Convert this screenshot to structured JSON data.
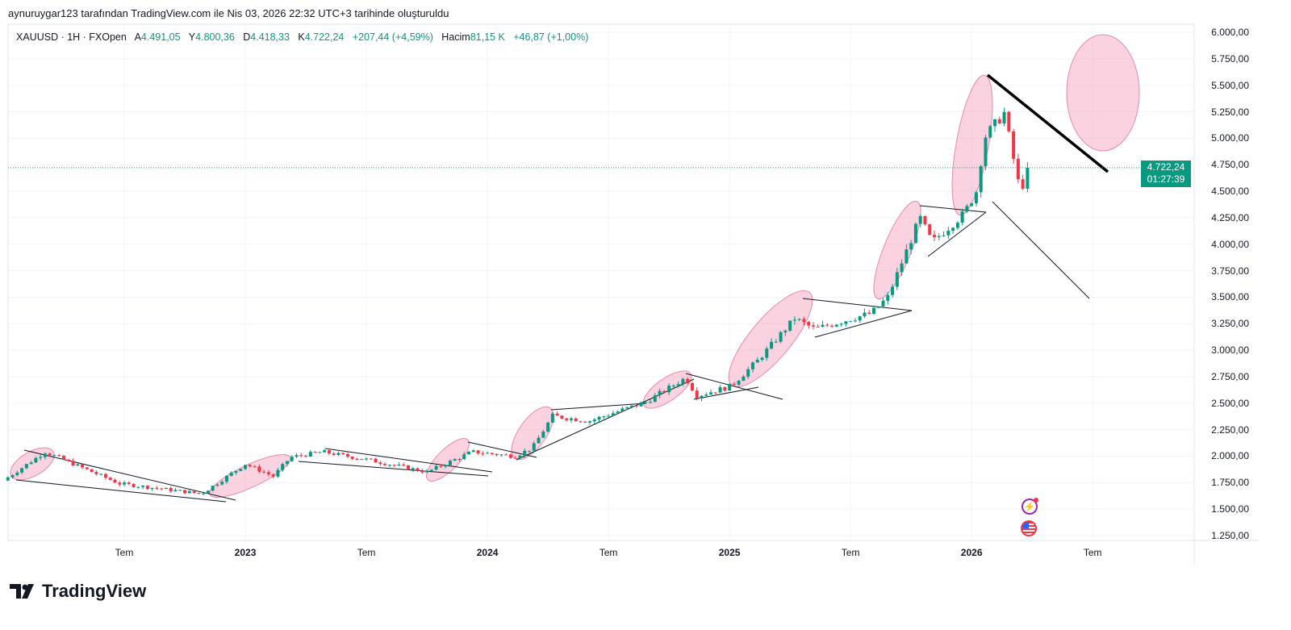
{
  "header": {
    "credit": "aynuruygar123 tarafından TradingView.com ile Nis 03, 2026 22:32 UTC+3 tarihinde oluşturuldu"
  },
  "legend": {
    "symbol": "XAUUSD · 1H · FXOpen",
    "open_label": "A",
    "open": "4.491,05",
    "high_label": "Y",
    "high": "4.800,36",
    "low_label": "D",
    "low": "4.418,33",
    "close_label": "K",
    "close": "4.722,24",
    "change": "+207,44 (+4,59%)",
    "volume_label": "Hacim",
    "volume": "81,15 K",
    "volume_change": "+46,87 (+1,00%)"
  },
  "price_label": {
    "price": "4.722,24",
    "countdown": "01:27:39"
  },
  "colors": {
    "up": "#089981",
    "down": "#f23645",
    "highlight": "#f4a6bd"
  },
  "icons": [
    "lightning-icon",
    "us-flag-icon"
  ],
  "brand": {
    "name": "TradingView"
  },
  "chart_data": {
    "type": "candlestick",
    "y_ticks": [
      "6.000,00",
      "5.750,00",
      "5.500,00",
      "5.250,00",
      "5.000,00",
      "4.750,00",
      "4.500,00",
      "4.250,00",
      "4.000,00",
      "3.750,00",
      "3.500,00",
      "3.250,00",
      "3.000,00",
      "2.750,00",
      "2.500,00",
      "2.250,00",
      "2.000,00",
      "1.750,00",
      "1.500,00",
      "1.250,00"
    ],
    "y_values": [
      6000,
      5750,
      5500,
      5250,
      5000,
      4750,
      4500,
      4250,
      4000,
      3750,
      3500,
      3250,
      3000,
      2750,
      2500,
      2250,
      2000,
      1750,
      1500,
      1250
    ],
    "ylim": [
      1250,
      6000
    ],
    "x_ticks": [
      {
        "label": "Tem",
        "week": 26,
        "bold": false
      },
      {
        "label": "2023",
        "week": 52,
        "bold": true
      },
      {
        "label": "Tem",
        "week": 78,
        "bold": false
      },
      {
        "label": "2024",
        "week": 104,
        "bold": true
      },
      {
        "label": "Tem",
        "week": 130,
        "bold": false
      },
      {
        "label": "2025",
        "week": 156,
        "bold": true
      },
      {
        "label": "Tem",
        "week": 182,
        "bold": false
      },
      {
        "label": "2026",
        "week": 208,
        "bold": true
      },
      {
        "label": "Tem",
        "week": 234,
        "bold": false
      }
    ],
    "close_anchors_week_price": [
      [
        1,
        1800
      ],
      [
        9,
        2040
      ],
      [
        25,
        1740
      ],
      [
        42.6,
        1645
      ],
      [
        52,
        1925
      ],
      [
        58,
        1810
      ],
      [
        61.7,
        1990
      ],
      [
        68.6,
        2040
      ],
      [
        79,
        1960
      ],
      [
        91,
        1850
      ],
      [
        100.7,
        2040
      ],
      [
        110,
        2000
      ],
      [
        113.7,
        2080
      ],
      [
        118,
        2380
      ],
      [
        125.8,
        2330
      ],
      [
        138,
        2510
      ],
      [
        146.6,
        2740
      ],
      [
        149,
        2570
      ],
      [
        156.3,
        2660
      ],
      [
        162,
        2900
      ],
      [
        170,
        3300
      ],
      [
        174.3,
        3200
      ],
      [
        186.5,
        3350
      ],
      [
        190,
        3500
      ],
      [
        196.9,
        4250
      ],
      [
        199.5,
        4020
      ],
      [
        206.4,
        4290
      ],
      [
        209,
        4500
      ],
      [
        210.8,
        5010
      ],
      [
        215,
        5240
      ],
      [
        218.5,
        4480
      ],
      [
        220,
        4722.24
      ]
    ],
    "last_price": 4722.24
  }
}
